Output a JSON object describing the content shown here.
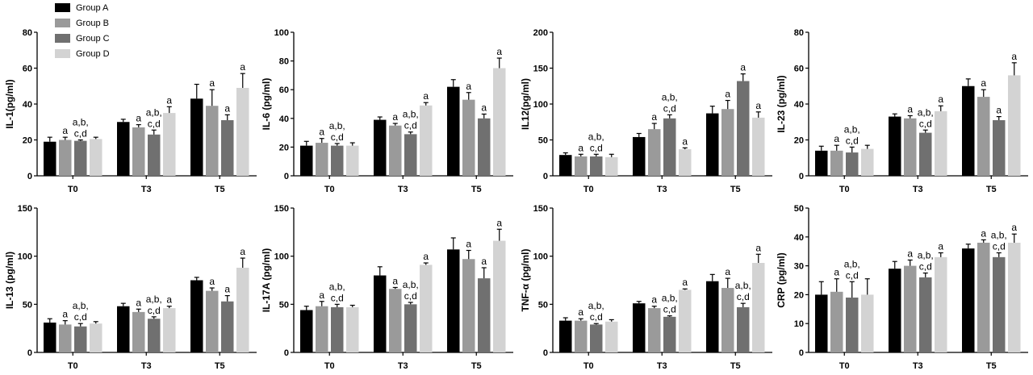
{
  "legend": [
    {
      "name": "Group A",
      "color": "#000000"
    },
    {
      "name": "Group B",
      "color": "#9a9a9a"
    },
    {
      "name": "Group C",
      "color": "#707070"
    },
    {
      "name": "Group D",
      "color": "#d3d3d3"
    }
  ],
  "chart_data": [
    {
      "type": "bar",
      "ylabel": "IL-1(pg/ml)",
      "ylim": [
        0,
        80
      ],
      "yticks": [
        0,
        20,
        40,
        60,
        80
      ],
      "categories": [
        "T0",
        "T3",
        "T5"
      ],
      "series": [
        {
          "name": "Group A",
          "values": [
            19,
            30,
            43
          ],
          "errors": [
            2.5,
            1.5,
            8
          ]
        },
        {
          "name": "Group B",
          "values": [
            20,
            27,
            39
          ],
          "errors": [
            1.5,
            1.5,
            9
          ]
        },
        {
          "name": "Group C",
          "values": [
            19.5,
            23,
            31
          ],
          "errors": [
            0.5,
            2.5,
            3
          ]
        },
        {
          "name": "Group D",
          "values": [
            20.5,
            35,
            49
          ],
          "errors": [
            1,
            3.5,
            8
          ]
        }
      ],
      "annotations": [
        [
          "",
          "",
          ""
        ],
        [
          "a",
          "a",
          "a"
        ],
        [
          "a,b,\nc,d",
          "a,b,\nc,d",
          "a"
        ],
        [
          "",
          "a",
          "a"
        ]
      ]
    },
    {
      "type": "bar",
      "ylabel": "IL-6 (pg/ml)",
      "ylim": [
        0,
        100
      ],
      "yticks": [
        0,
        20,
        40,
        60,
        80,
        100
      ],
      "categories": [
        "T0",
        "T3",
        "T5"
      ],
      "series": [
        {
          "name": "Group A",
          "values": [
            21,
            39,
            62
          ],
          "errors": [
            3,
            2,
            5
          ]
        },
        {
          "name": "Group B",
          "values": [
            23,
            35,
            53
          ],
          "errors": [
            3,
            1.5,
            5
          ]
        },
        {
          "name": "Group C",
          "values": [
            21,
            29,
            40
          ],
          "errors": [
            1.5,
            1.5,
            3
          ]
        },
        {
          "name": "Group D",
          "values": [
            21,
            49,
            75
          ],
          "errors": [
            2,
            2,
            7
          ]
        }
      ],
      "annotations": [
        [
          "",
          "",
          ""
        ],
        [
          "a",
          "a",
          "a"
        ],
        [
          "a,b,\nc,d",
          "a,b,\nc,d",
          "a"
        ],
        [
          "",
          "a",
          "a"
        ]
      ]
    },
    {
      "type": "bar",
      "ylabel": "IL12(pg/ml)",
      "ylim": [
        0,
        200
      ],
      "yticks": [
        0,
        50,
        100,
        150,
        200
      ],
      "categories": [
        "T0",
        "T3",
        "T5"
      ],
      "series": [
        {
          "name": "Group A",
          "values": [
            29,
            54,
            87
          ],
          "errors": [
            3,
            5,
            10
          ]
        },
        {
          "name": "Group B",
          "values": [
            27,
            65,
            93
          ],
          "errors": [
            3,
            8,
            12
          ]
        },
        {
          "name": "Group C",
          "values": [
            27,
            80,
            132
          ],
          "errors": [
            3,
            5,
            10
          ]
        },
        {
          "name": "Group D",
          "values": [
            26,
            37,
            81
          ],
          "errors": [
            4,
            2,
            8
          ]
        }
      ],
      "annotations": [
        [
          "",
          "",
          ""
        ],
        [
          "a",
          "a",
          "a"
        ],
        [
          "a,b,\nc,d",
          "a,b,\nc,d",
          "a"
        ],
        [
          "",
          "a",
          "a"
        ]
      ]
    },
    {
      "type": "bar",
      "ylabel": "IL-23 (pg/ml)",
      "ylim": [
        0,
        80
      ],
      "yticks": [
        0,
        20,
        40,
        60,
        80
      ],
      "categories": [
        "T0",
        "T3",
        "T5"
      ],
      "series": [
        {
          "name": "Group A",
          "values": [
            14,
            33,
            50
          ],
          "errors": [
            2.5,
            1.5,
            4
          ]
        },
        {
          "name": "Group B",
          "values": [
            14,
            32,
            44
          ],
          "errors": [
            3,
            1.5,
            4
          ]
        },
        {
          "name": "Group C",
          "values": [
            13,
            24,
            31
          ],
          "errors": [
            3,
            1.5,
            2
          ]
        },
        {
          "name": "Group D",
          "values": [
            15,
            36,
            56
          ],
          "errors": [
            2,
            3,
            7
          ]
        }
      ],
      "annotations": [
        [
          "",
          "",
          ""
        ],
        [
          "a",
          "a",
          "a"
        ],
        [
          "a,b,\nc,d",
          "a,b,\nc,d",
          "a"
        ],
        [
          "",
          "a",
          "a"
        ]
      ]
    },
    {
      "type": "bar",
      "ylabel": "IL-13 (pg/ml)",
      "ylim": [
        0,
        150
      ],
      "yticks": [
        0,
        50,
        100,
        150
      ],
      "categories": [
        "T0",
        "T3",
        "T5"
      ],
      "series": [
        {
          "name": "Group A",
          "values": [
            31,
            48,
            75
          ],
          "errors": [
            4,
            3,
            3
          ]
        },
        {
          "name": "Group B",
          "values": [
            29,
            42,
            64
          ],
          "errors": [
            4,
            3,
            3
          ]
        },
        {
          "name": "Group C",
          "values": [
            27,
            35,
            53
          ],
          "errors": [
            3,
            2,
            6
          ]
        },
        {
          "name": "Group D",
          "values": [
            30,
            46,
            88
          ],
          "errors": [
            2,
            2,
            10
          ]
        }
      ],
      "annotations": [
        [
          "",
          "",
          ""
        ],
        [
          "a",
          "a",
          "a"
        ],
        [
          "a,b,\nc,d",
          "a,b,\nc,d",
          "a"
        ],
        [
          "",
          "a",
          "a"
        ]
      ]
    },
    {
      "type": "bar",
      "ylabel": "IL-17A (pg/ml)",
      "ylim": [
        0,
        150
      ],
      "yticks": [
        0,
        50,
        100,
        150
      ],
      "categories": [
        "T0",
        "T3",
        "T5"
      ],
      "series": [
        {
          "name": "Group A",
          "values": [
            44,
            80,
            107
          ],
          "errors": [
            4,
            9,
            12
          ]
        },
        {
          "name": "Group B",
          "values": [
            48,
            66,
            97
          ],
          "errors": [
            5,
            1.5,
            9
          ]
        },
        {
          "name": "Group C",
          "values": [
            47,
            50,
            77
          ],
          "errors": [
            3,
            2,
            11
          ]
        },
        {
          "name": "Group D",
          "values": [
            47,
            91,
            116
          ],
          "errors": [
            2,
            2,
            12
          ]
        }
      ],
      "annotations": [
        [
          "",
          "",
          ""
        ],
        [
          "a",
          "a",
          "a"
        ],
        [
          "a,b,\nc,d",
          "a,b,\nc,d",
          "a"
        ],
        [
          "",
          "a",
          "a"
        ]
      ]
    },
    {
      "type": "bar",
      "ylabel": "TNF-α (pg/ml)",
      "ylim": [
        0,
        150
      ],
      "yticks": [
        0,
        50,
        100,
        150
      ],
      "categories": [
        "T0",
        "T3",
        "T5"
      ],
      "series": [
        {
          "name": "Group A",
          "values": [
            33,
            51,
            74
          ],
          "errors": [
            3,
            2,
            7
          ]
        },
        {
          "name": "Group B",
          "values": [
            33,
            46,
            67
          ],
          "errors": [
            2,
            2,
            10
          ]
        },
        {
          "name": "Group C",
          "values": [
            29,
            37,
            47
          ],
          "errors": [
            1,
            1,
            4
          ]
        },
        {
          "name": "Group D",
          "values": [
            32,
            65,
            93
          ],
          "errors": [
            2,
            1,
            9
          ]
        }
      ],
      "annotations": [
        [
          "",
          "",
          ""
        ],
        [
          "a",
          "a",
          "a"
        ],
        [
          "a,b,\nc,d",
          "a,b,\nc,d",
          "a,b,\nc,d"
        ],
        [
          "",
          "a",
          "a"
        ]
      ]
    },
    {
      "type": "bar",
      "ylabel": "CRP (pg/ml)",
      "ylim": [
        0,
        50
      ],
      "yticks": [
        0,
        10,
        20,
        30,
        40,
        50
      ],
      "categories": [
        "T0",
        "T3",
        "T5"
      ],
      "series": [
        {
          "name": "Group A",
          "values": [
            20,
            29,
            36
          ],
          "errors": [
            4.5,
            2.5,
            1.5
          ]
        },
        {
          "name": "Group B",
          "values": [
            21,
            30,
            38
          ],
          "errors": [
            4.5,
            2,
            1
          ]
        },
        {
          "name": "Group C",
          "values": [
            19,
            26,
            33
          ],
          "errors": [
            5.5,
            1.5,
            1.5
          ]
        },
        {
          "name": "Group D",
          "values": [
            20,
            33,
            38
          ],
          "errors": [
            5.5,
            1.5,
            3
          ]
        }
      ],
      "annotations": [
        [
          "",
          "",
          ""
        ],
        [
          "a",
          "a",
          "a"
        ],
        [
          "a,b,\nc,d",
          "a,b,\nc,d",
          "a,b,\nc,d"
        ],
        [
          "",
          "a",
          "a"
        ]
      ]
    }
  ]
}
